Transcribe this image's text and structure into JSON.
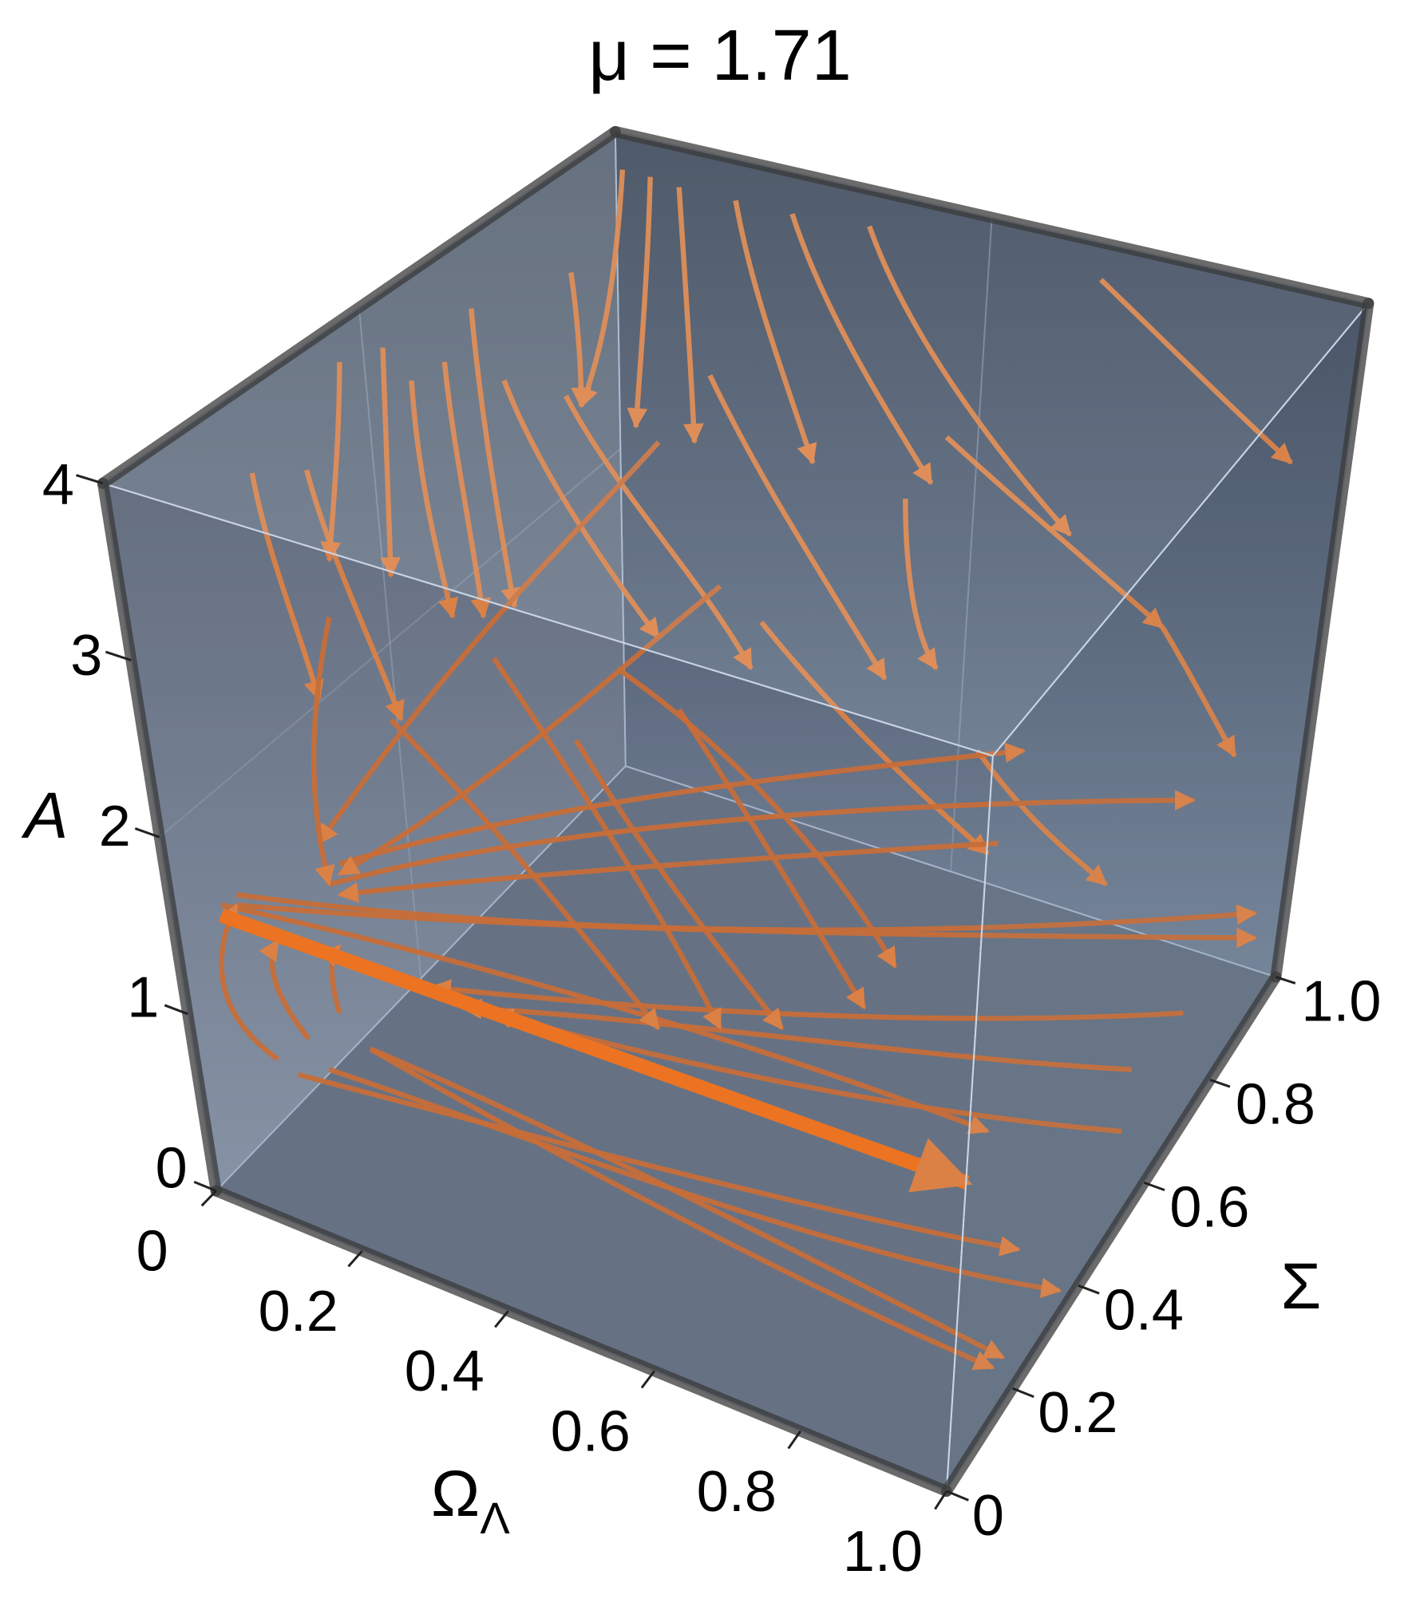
{
  "chart_data": {
    "type": "stream3d",
    "title": "μ = 1.71",
    "xlabel": {
      "text": "Ω",
      "subscript": "Λ"
    },
    "ylabel": "Σ",
    "zlabel": "A",
    "xlim": [
      0,
      1
    ],
    "ylim": [
      0,
      1
    ],
    "zlim": [
      0,
      4
    ],
    "xticks": [
      0,
      0.2,
      0.4,
      0.6,
      0.8,
      {
        "value": 1,
        "label": "1.0"
      }
    ],
    "yticks": [
      0,
      0.2,
      0.4,
      0.6,
      0.8,
      {
        "value": 1,
        "label": "1.0"
      }
    ],
    "zticks": [
      0,
      1,
      2,
      3,
      4
    ],
    "color": "#ec7a2c",
    "box_color": "#8fa3bb"
  }
}
